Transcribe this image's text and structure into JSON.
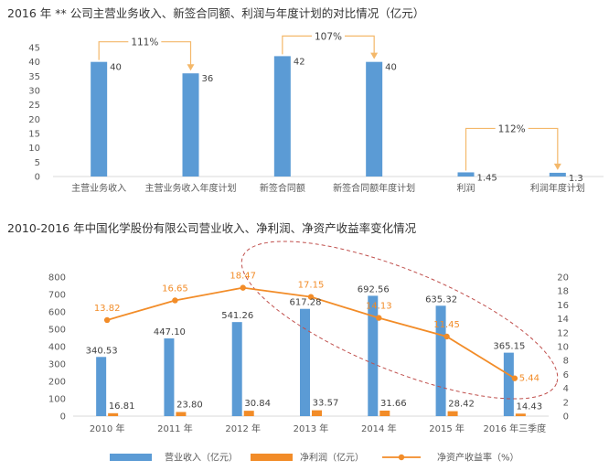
{
  "chart_data": [
    {
      "type": "bar",
      "title": "2016 年 ** 公司主营业务收入、新签合同额、利润与年度计划的对比情况（亿元）",
      "categories": [
        "主营业务收入",
        "主营业务收入年度计划",
        "新签合同额",
        "新签合同额年度计划",
        "利润",
        "利润年度计划"
      ],
      "values": [
        40,
        36,
        42,
        40,
        1.45,
        1.3
      ],
      "value_labels": [
        "40",
        "36",
        "42",
        "40",
        "1.45",
        "1.3"
      ],
      "ylim": [
        0,
        45
      ],
      "yticks": [
        0,
        5,
        10,
        15,
        20,
        25,
        30,
        35,
        40,
        45
      ],
      "grid": false,
      "annotations": [
        {
          "from": 0,
          "to": 1,
          "text": "111%"
        },
        {
          "from": 2,
          "to": 3,
          "text": "107%"
        },
        {
          "from": 4,
          "to": 5,
          "text": "112%"
        }
      ],
      "colors": {
        "bar": "#5b9bd5",
        "annotation": "#f4b86a"
      }
    },
    {
      "type": "bar",
      "title": "2010-2016 年中国化学股份有限公司营业收入、净利润、净资产收益率变化情况",
      "categories": [
        "2010 年",
        "2011 年",
        "2012 年",
        "2013 年",
        "2014 年",
        "2015 年",
        "2016 年三季度"
      ],
      "series": [
        {
          "name": "营业收入（亿元）",
          "type": "bar",
          "axis": "left",
          "values": [
            340.53,
            447.1,
            541.26,
            617.28,
            692.56,
            635.32,
            365.15
          ],
          "labels": [
            "340.53",
            "447.10",
            "541.26",
            "617.28",
            "692.56",
            "635.32",
            "365.15"
          ],
          "color": "#5b9bd5"
        },
        {
          "name": "净利润（亿元）",
          "type": "bar",
          "axis": "left",
          "values": [
            16.81,
            23.8,
            30.84,
            33.57,
            31.66,
            28.42,
            14.43
          ],
          "labels": [
            "16.81",
            "23.80",
            "30.84",
            "33.57",
            "31.66",
            "28.42",
            "14.43"
          ],
          "color": "#f28c28"
        },
        {
          "name": "净资产收益率（%）",
          "type": "line",
          "axis": "right",
          "values": [
            13.82,
            16.65,
            18.47,
            17.15,
            14.13,
            11.45,
            5.44
          ],
          "labels": [
            "13.82",
            "16.65",
            "18.47",
            "17.15",
            "14.13",
            "11.45",
            "5.44"
          ],
          "color": "#f28c28"
        }
      ],
      "ylim": [
        0,
        800
      ],
      "yticks": [
        0,
        100,
        200,
        300,
        400,
        500,
        600,
        700,
        800
      ],
      "y2lim": [
        0,
        20
      ],
      "y2ticks": [
        0,
        2,
        4,
        6,
        8,
        10,
        12,
        14,
        16,
        18,
        20
      ],
      "grid": false,
      "legend": "bottom",
      "highlight": "dashed red ellipse around 2012–2016 三季度",
      "colors": {
        "ellipse": "#c0504d"
      }
    }
  ]
}
